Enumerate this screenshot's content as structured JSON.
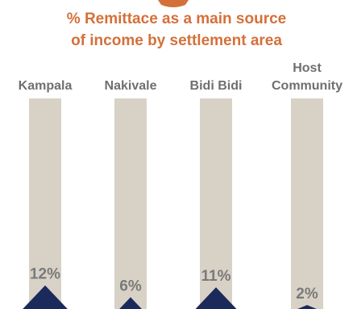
{
  "chart_data": {
    "type": "bar",
    "title_lines": [
      "% Remittace as a main source",
      "of income by settlement area"
    ],
    "categories": [
      [
        "Kampala"
      ],
      [
        "Nakivale"
      ],
      [
        "Bidi Bidi"
      ],
      [
        "Host",
        "Community"
      ]
    ],
    "values": [
      12,
      6,
      11,
      2
    ],
    "value_labels": [
      "12%",
      "6%",
      "11%",
      "2%"
    ],
    "ylim": [
      0,
      100
    ],
    "colors": {
      "title": "#d4703a",
      "category_label": "#6f6f6f",
      "track": "#d8d1c6",
      "value_label": "#7a7a7a",
      "marker": "#1b2a5a"
    }
  }
}
